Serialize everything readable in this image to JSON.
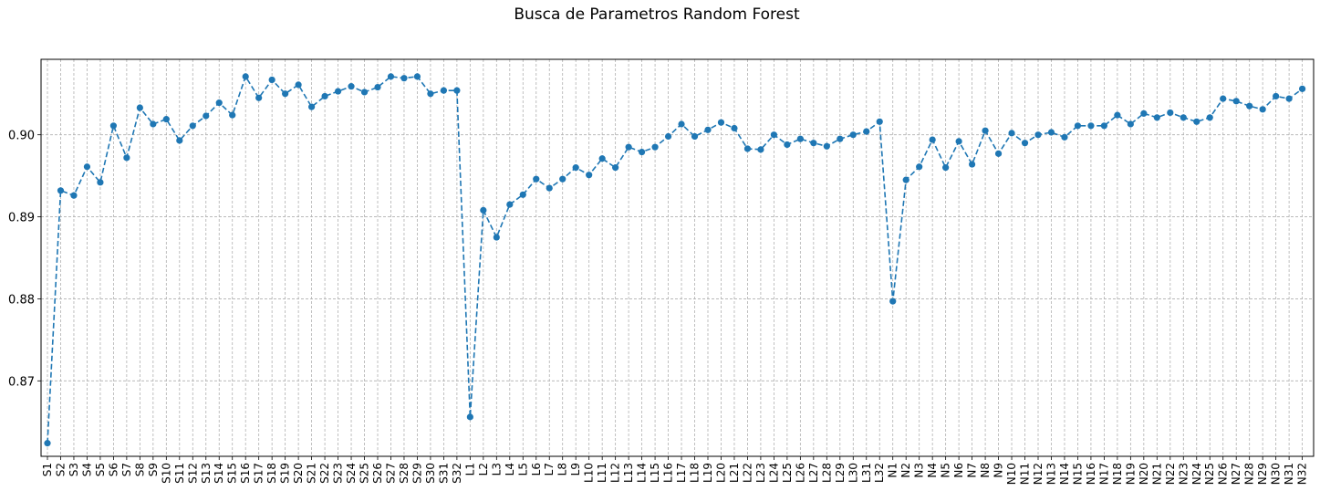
{
  "chart_data": {
    "type": "line",
    "title": "Busca de Parametros Random Forest",
    "xlabel": "",
    "ylabel": "",
    "ylim": [
      0.8608,
      0.9092
    ],
    "yticks": [
      "0.87",
      "0.88",
      "0.89",
      "0.90"
    ],
    "grid": true,
    "line_style": "dashed",
    "marker": "circle",
    "color": "#1f77b4",
    "categories": [
      "S1",
      "S2",
      "S3",
      "S4",
      "S5",
      "S6",
      "S7",
      "S8",
      "S9",
      "S10",
      "S11",
      "S12",
      "S13",
      "S14",
      "S15",
      "S16",
      "S17",
      "S18",
      "S19",
      "S20",
      "S21",
      "S22",
      "S23",
      "S24",
      "S25",
      "S26",
      "S27",
      "S28",
      "S29",
      "S30",
      "S31",
      "S32",
      "L1",
      "L2",
      "L3",
      "L4",
      "L5",
      "L6",
      "L7",
      "L8",
      "L9",
      "L10",
      "L11",
      "L12",
      "L13",
      "L14",
      "L15",
      "L16",
      "L17",
      "L18",
      "L19",
      "L20",
      "L21",
      "L22",
      "L23",
      "L24",
      "L25",
      "L26",
      "L27",
      "L28",
      "L29",
      "L30",
      "L31",
      "L32",
      "N1",
      "N2",
      "N3",
      "N4",
      "N5",
      "N6",
      "N7",
      "N8",
      "N9",
      "N10",
      "N11",
      "N12",
      "N13",
      "N14",
      "N15",
      "N16",
      "N17",
      "N18",
      "N19",
      "N20",
      "N21",
      "N22",
      "N23",
      "N24",
      "N25",
      "N26",
      "N27",
      "N28",
      "N29",
      "N30",
      "N31",
      "N32"
    ],
    "values": [
      0.8624,
      0.8932,
      0.8926,
      0.8961,
      0.8942,
      0.9011,
      0.8972,
      0.9033,
      0.9013,
      0.9019,
      0.8993,
      0.9011,
      0.9023,
      0.9039,
      0.9024,
      0.9071,
      0.9045,
      0.9067,
      0.905,
      0.9061,
      0.9034,
      0.9047,
      0.9053,
      0.9059,
      0.9052,
      0.9058,
      0.9071,
      0.9069,
      0.9071,
      0.905,
      0.9054,
      0.9054,
      0.8656,
      0.8908,
      0.8875,
      0.8915,
      0.8927,
      0.8946,
      0.8935,
      0.8946,
      0.896,
      0.8951,
      0.8971,
      0.896,
      0.8985,
      0.8979,
      0.8985,
      0.8998,
      0.9013,
      0.8998,
      0.9006,
      0.9015,
      0.9008,
      0.8983,
      0.8982,
      0.9,
      0.8988,
      0.8995,
      0.899,
      0.8986,
      0.8995,
      0.9,
      0.9004,
      0.9016,
      0.8797,
      0.8945,
      0.8961,
      0.8994,
      0.896,
      0.8992,
      0.8964,
      0.9005,
      0.8977,
      0.9002,
      0.899,
      0.9,
      0.9003,
      0.8997,
      0.9011,
      0.9011,
      0.9011,
      0.9024,
      0.9013,
      0.9026,
      0.9021,
      0.9027,
      0.9021,
      0.9016,
      0.9021,
      0.9044,
      0.9041,
      0.9035,
      0.9031,
      0.9047,
      0.9044,
      0.9056
    ]
  }
}
